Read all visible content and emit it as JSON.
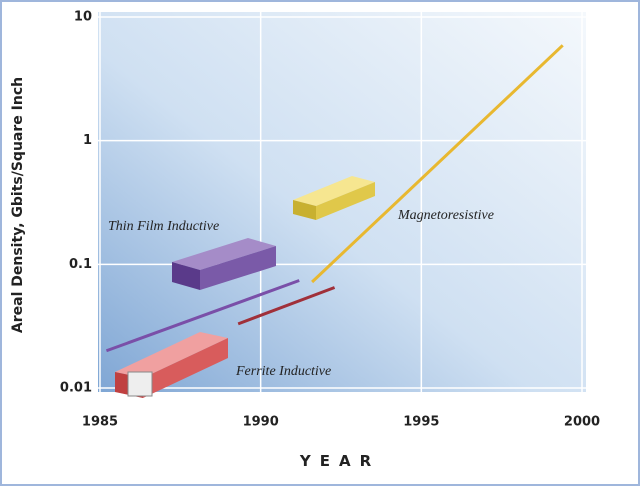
{
  "chart_data": {
    "type": "line",
    "y_label": "Areal Density, Gbits/Square Inch",
    "x_label": "YEAR",
    "log_y": true,
    "grid": true,
    "xlim": [
      1985,
      2000
    ],
    "xticks": [
      1985,
      1990,
      1995,
      2000
    ],
    "ylim": [
      0.01,
      10
    ],
    "yticks": [
      0.01,
      0.1,
      1,
      10
    ],
    "series": [
      {
        "name": "Thin Film Inductive",
        "color": "#7a4fa8",
        "x": [
          1985.2,
          1991.2
        ],
        "values": [
          0.02,
          0.074
        ]
      },
      {
        "name": "Ferrite Inductive",
        "color": "#a0303a",
        "x": [
          1989.3,
          1992.3
        ],
        "values": [
          0.033,
          0.065
        ]
      },
      {
        "name": "Magnetoresistive",
        "color": "#e8b830",
        "x": [
          1991.6,
          1999.4
        ],
        "values": [
          0.072,
          5.9
        ]
      }
    ]
  }
}
